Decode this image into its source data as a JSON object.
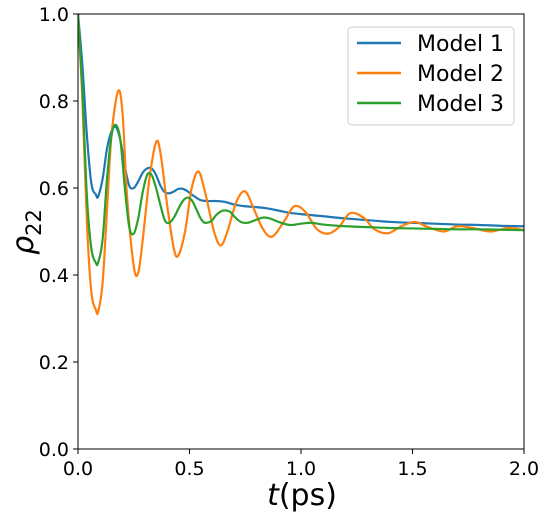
{
  "chart_data": {
    "type": "line",
    "xlabel": "t(ps)",
    "ylabel": "ρ22",
    "xlim": [
      0,
      2.0
    ],
    "ylim": [
      0,
      1.0
    ],
    "xticks": [
      0.0,
      0.5,
      1.0,
      1.5,
      2.0
    ],
    "xtick_labels": [
      "0.0",
      "0.5",
      "1.0",
      "1.5",
      "2.0"
    ],
    "yticks": [
      0.0,
      0.2,
      0.4,
      0.6,
      0.8,
      1.0
    ],
    "ytick_labels": [
      "0.0",
      "0.2",
      "0.4",
      "0.6",
      "0.8",
      "1.0"
    ],
    "grid": false,
    "legend_position": "top-right",
    "series": [
      {
        "name": "Model 1",
        "color": "#1f77b4",
        "x": [
          0.0,
          0.02,
          0.04,
          0.06,
          0.08,
          0.09,
          0.11,
          0.13,
          0.15,
          0.17,
          0.19,
          0.21,
          0.23,
          0.25,
          0.27,
          0.29,
          0.31,
          0.33,
          0.35,
          0.37,
          0.39,
          0.41,
          0.43,
          0.45,
          0.47,
          0.49,
          0.51,
          0.53,
          0.55,
          0.58,
          0.62,
          0.66,
          0.7,
          0.75,
          0.8,
          0.85,
          0.9,
          0.95,
          1.0,
          1.1,
          1.2,
          1.3,
          1.4,
          1.5,
          1.6,
          1.7,
          1.8,
          1.9,
          2.0
        ],
        "y": [
          1.0,
          0.88,
          0.72,
          0.61,
          0.585,
          0.58,
          0.62,
          0.69,
          0.73,
          0.74,
          0.71,
          0.65,
          0.605,
          0.6,
          0.615,
          0.635,
          0.645,
          0.645,
          0.63,
          0.605,
          0.59,
          0.588,
          0.592,
          0.598,
          0.598,
          0.593,
          0.585,
          0.578,
          0.572,
          0.57,
          0.57,
          0.568,
          0.562,
          0.558,
          0.556,
          0.553,
          0.548,
          0.543,
          0.54,
          0.535,
          0.53,
          0.526,
          0.522,
          0.52,
          0.518,
          0.516,
          0.515,
          0.513,
          0.512
        ]
      },
      {
        "name": "Model 2",
        "color": "#ff7f0e",
        "x": [
          0.0,
          0.02,
          0.04,
          0.06,
          0.08,
          0.09,
          0.11,
          0.13,
          0.15,
          0.18,
          0.2,
          0.22,
          0.25,
          0.27,
          0.29,
          0.32,
          0.35,
          0.37,
          0.4,
          0.43,
          0.45,
          0.48,
          0.51,
          0.54,
          0.57,
          0.61,
          0.64,
          0.67,
          0.71,
          0.75,
          0.79,
          0.83,
          0.87,
          0.92,
          0.97,
          1.02,
          1.07,
          1.12,
          1.17,
          1.22,
          1.28,
          1.33,
          1.39,
          1.45,
          1.51,
          1.57,
          1.64,
          1.7,
          1.77,
          1.85,
          1.93,
          2.0
        ],
        "y": [
          1.0,
          0.8,
          0.52,
          0.36,
          0.32,
          0.315,
          0.38,
          0.55,
          0.72,
          0.823,
          0.77,
          0.58,
          0.42,
          0.405,
          0.48,
          0.62,
          0.705,
          0.68,
          0.56,
          0.46,
          0.445,
          0.5,
          0.6,
          0.638,
          0.59,
          0.5,
          0.468,
          0.5,
          0.568,
          0.592,
          0.55,
          0.505,
          0.488,
          0.52,
          0.558,
          0.545,
          0.506,
          0.495,
          0.51,
          0.542,
          0.532,
          0.505,
          0.496,
          0.512,
          0.522,
          0.51,
          0.5,
          0.512,
          0.508,
          0.5,
          0.508,
          0.503
        ]
      },
      {
        "name": "Model 3",
        "color": "#2ca02c",
        "x": [
          0.0,
          0.02,
          0.04,
          0.06,
          0.08,
          0.09,
          0.11,
          0.13,
          0.15,
          0.17,
          0.19,
          0.21,
          0.23,
          0.25,
          0.27,
          0.29,
          0.31,
          0.33,
          0.35,
          0.37,
          0.39,
          0.41,
          0.43,
          0.45,
          0.47,
          0.49,
          0.51,
          0.53,
          0.55,
          0.57,
          0.6,
          0.62,
          0.65,
          0.68,
          0.7,
          0.73,
          0.76,
          0.8,
          0.83,
          0.86,
          0.9,
          0.95,
          1.0,
          1.05,
          1.1,
          1.2,
          1.3,
          1.4,
          1.5,
          1.6,
          1.7,
          1.8,
          1.9,
          2.0
        ],
        "y": [
          1.0,
          0.82,
          0.58,
          0.46,
          0.428,
          0.428,
          0.48,
          0.62,
          0.72,
          0.745,
          0.71,
          0.6,
          0.51,
          0.495,
          0.53,
          0.59,
          0.63,
          0.63,
          0.6,
          0.56,
          0.525,
          0.52,
          0.532,
          0.552,
          0.57,
          0.578,
          0.572,
          0.552,
          0.53,
          0.52,
          0.525,
          0.538,
          0.548,
          0.546,
          0.535,
          0.522,
          0.52,
          0.527,
          0.532,
          0.53,
          0.522,
          0.515,
          0.518,
          0.52,
          0.516,
          0.512,
          0.51,
          0.508,
          0.507,
          0.506,
          0.505,
          0.505,
          0.504,
          0.503
        ]
      }
    ]
  }
}
